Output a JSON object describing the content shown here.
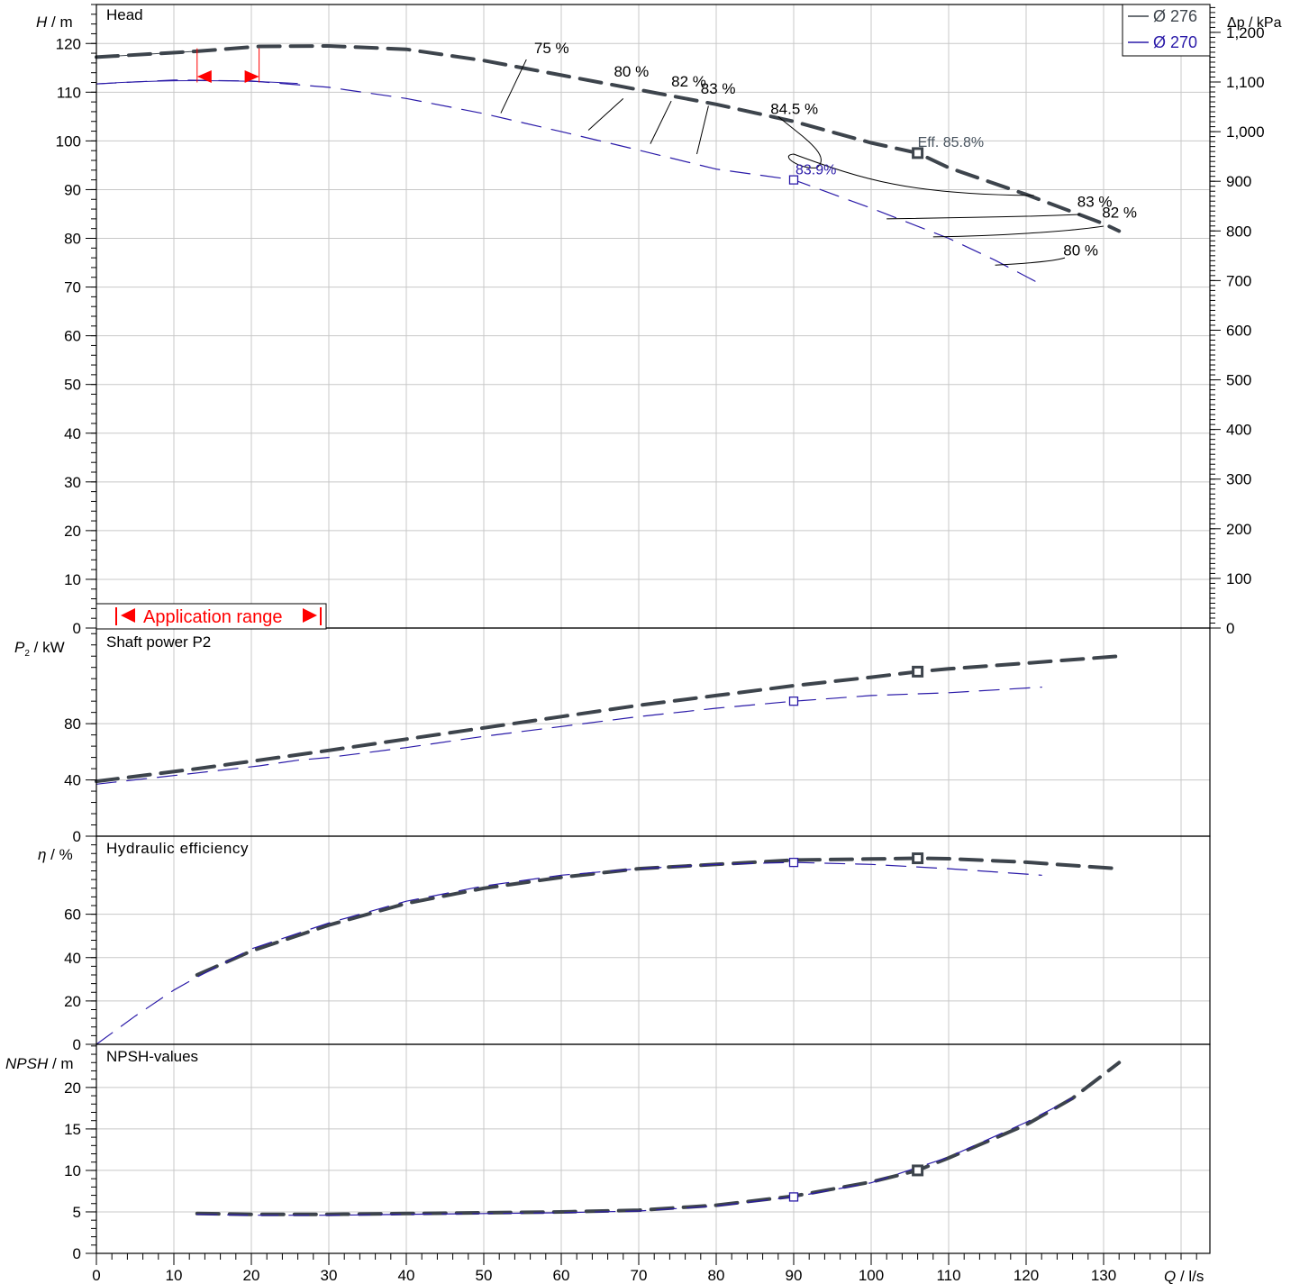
{
  "colors": {
    "d276": "#3d444c",
    "d270": "#2a1aa8",
    "grid": "#c8c8c8",
    "range": "#ff0000",
    "eff_label": "#4a5560"
  },
  "legend": [
    {
      "label": "Ø 276",
      "color": "#3d444c"
    },
    {
      "label": "Ø 270",
      "color": "#2a1aa8"
    }
  ],
  "x_axis": {
    "label_q": "Q",
    "unit": " / l/s",
    "ticks": [
      "0",
      "10",
      "20",
      "30",
      "40",
      "50",
      "60",
      "70",
      "80",
      "90",
      "100",
      "110",
      "120",
      "130"
    ],
    "xlim": [
      0,
      145
    ]
  },
  "application_range": {
    "label": "Application range",
    "q_min": 13,
    "q_max": 21
  },
  "chart_data": [
    {
      "type": "line",
      "title": "Head",
      "ylabel_var": "H",
      "ylabel_unit": " / m",
      "y2label_var": "Δp",
      "y2label_unit": " / kPa",
      "ylim": [
        0,
        128
      ],
      "y_ticks": [
        "0",
        "10",
        "20",
        "30",
        "40",
        "50",
        "60",
        "70",
        "80",
        "90",
        "100",
        "110",
        "120"
      ],
      "y2_ticks": [
        "0",
        "100",
        "200",
        "300",
        "400",
        "500",
        "600",
        "700",
        "800",
        "900",
        "1,000",
        "1,100",
        "1,200"
      ],
      "series": [
        {
          "name": "Ø 276",
          "x": [
            0,
            13,
            21,
            30,
            40,
            50,
            60,
            70,
            80,
            90,
            100,
            106,
            110,
            120,
            130,
            132
          ],
          "y": [
            117.2,
            118.4,
            119.4,
            119.5,
            118.8,
            116.5,
            113.5,
            110.5,
            107.5,
            104.0,
            99.6,
            97.5,
            94.5,
            89.0,
            83.0,
            81.5
          ]
        },
        {
          "name": "Ø 270",
          "x": [
            0,
            10,
            20,
            30,
            40,
            50,
            60,
            70,
            80,
            90,
            100,
            110,
            116,
            122
          ],
          "y": [
            111.7,
            112.5,
            112.3,
            111.0,
            108.7,
            105.6,
            101.9,
            98.1,
            94.2,
            92.0,
            86.2,
            80.0,
            75.5,
            70.5
          ]
        }
      ],
      "bep": [
        {
          "series": "Ø 276",
          "x": 106,
          "y": 97.5,
          "label": "Eff.  85.8%"
        },
        {
          "series": "Ø 270",
          "x": 90,
          "y": 92.0,
          "label": "83.9%"
        }
      ],
      "efficiency_labels": [
        {
          "text": "75 %",
          "x": 56.5,
          "y": 118
        },
        {
          "text": "80 %",
          "x": 66.8,
          "y": 113.2
        },
        {
          "text": "82 %",
          "x": 74.2,
          "y": 111.2
        },
        {
          "text": "83 %",
          "x": 78,
          "y": 109.7
        },
        {
          "text": "84.5 %",
          "x": 87,
          "y": 105.5
        },
        {
          "text": "83 %",
          "x": 126.6,
          "y": 86.5
        },
        {
          "text": "82 %",
          "x": 129.8,
          "y": 84.3
        },
        {
          "text": "80 %",
          "x": 124.8,
          "y": 76.5
        }
      ]
    },
    {
      "type": "line",
      "title": "Shaft power P2",
      "ylabel_var": "P",
      "ylabel_sub": "2",
      "ylabel_unit": " / kW",
      "ylim": [
        0,
        148
      ],
      "y_ticks": [
        "0",
        "40",
        "80"
      ],
      "series": [
        {
          "name": "Ø 276",
          "x": [
            0,
            13,
            21,
            30,
            40,
            50,
            60,
            70,
            80,
            90,
            100,
            106,
            110,
            120,
            132
          ],
          "y": [
            39,
            48,
            54,
            61,
            69,
            77,
            85,
            93,
            100,
            107,
            113,
            117,
            119,
            123,
            128
          ]
        },
        {
          "name": "Ø 270",
          "x": [
            0,
            13,
            21,
            26,
            30,
            40,
            50,
            60,
            70,
            80,
            90,
            100,
            110,
            122
          ],
          "y": [
            37,
            45,
            50,
            54,
            56,
            63,
            71,
            78,
            85,
            91,
            96,
            100,
            102,
            106
          ]
        }
      ],
      "bep": [
        {
          "series": "Ø 276",
          "x": 106,
          "y": 117
        },
        {
          "series": "Ø 270",
          "x": 90,
          "y": 96
        }
      ]
    },
    {
      "type": "line",
      "title": "Hydraulic efficiency",
      "ylabel_var": "η",
      "ylabel_unit": " / %",
      "ylim": [
        0,
        96
      ],
      "y_ticks": [
        "0",
        "20",
        "40",
        "60"
      ],
      "series": [
        {
          "name": "Ø 276",
          "x": [
            13,
            20,
            30,
            40,
            50,
            60,
            70,
            80,
            90,
            100,
            106,
            110,
            120,
            132
          ],
          "y": [
            32,
            43,
            55,
            65,
            72,
            77,
            81,
            83,
            85,
            85.5,
            85.8,
            85.6,
            84,
            81
          ]
        },
        {
          "name": "Ø 270",
          "x": [
            0,
            5,
            10,
            13,
            20,
            30,
            40,
            50,
            60,
            70,
            80,
            90,
            100,
            110,
            122
          ],
          "y": [
            0,
            13,
            25,
            31,
            44,
            56,
            66,
            73,
            78,
            81,
            83,
            83.9,
            83,
            81,
            78
          ]
        }
      ],
      "bep": [
        {
          "series": "Ø 276",
          "x": 106,
          "y": 85.8
        },
        {
          "series": "Ø 270",
          "x": 90,
          "y": 83.9
        }
      ]
    },
    {
      "type": "line",
      "title": "NPSH-values",
      "ylabel_var": "NPSH",
      "ylabel_unit": " / m",
      "ylim": [
        0,
        25.2
      ],
      "y_ticks": [
        "0",
        "5",
        "10",
        "15",
        "20"
      ],
      "series": [
        {
          "name": "Ø 276",
          "x": [
            13,
            20,
            30,
            40,
            50,
            60,
            70,
            80,
            90,
            100,
            106,
            110,
            120,
            126,
            132
          ],
          "y": [
            4.8,
            4.7,
            4.7,
            4.8,
            4.9,
            5.0,
            5.2,
            5.8,
            6.9,
            8.6,
            10,
            11.5,
            15.5,
            18.7,
            23
          ]
        },
        {
          "name": "Ø 270",
          "x": [
            13,
            20,
            30,
            40,
            50,
            60,
            70,
            80,
            90,
            100,
            110,
            120,
            126
          ],
          "y": [
            4.7,
            4.6,
            4.6,
            4.7,
            4.8,
            4.9,
            5.1,
            5.7,
            6.8,
            8.5,
            11.6,
            15.8,
            18.7
          ]
        }
      ],
      "bep": [
        {
          "series": "Ø 276",
          "x": 106,
          "y": 10
        },
        {
          "series": "Ø 270",
          "x": 90,
          "y": 6.8
        }
      ]
    }
  ]
}
